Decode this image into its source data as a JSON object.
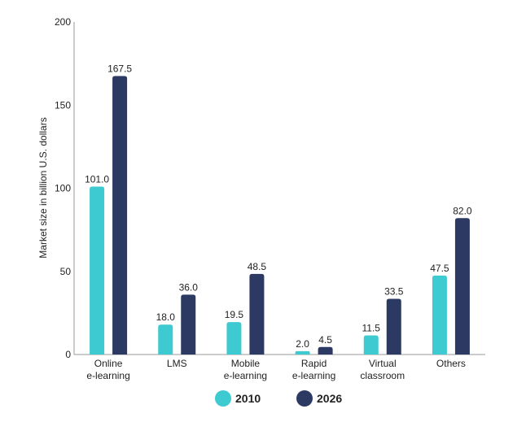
{
  "chart_data": {
    "type": "bar",
    "title": "",
    "xlabel": "",
    "ylabel": "Market size in billion U.S. dollars",
    "ylim": [
      0,
      200
    ],
    "yticks": [
      "0",
      "50",
      "100",
      "150",
      "200"
    ],
    "grid": false,
    "legend_position": "bottom",
    "categories": [
      [
        "Online",
        "e-learning"
      ],
      [
        "LMS"
      ],
      [
        "Mobile",
        "e-learning"
      ],
      [
        "Rapid",
        "e-learning"
      ],
      [
        "Virtual",
        "classroom"
      ],
      [
        "Others"
      ]
    ],
    "series": [
      {
        "name": "2010",
        "color": "#3ecad1",
        "values": [
          101.0,
          18.0,
          19.5,
          2.0,
          11.5,
          47.5
        ],
        "labels": [
          "101.0",
          "18.0",
          "19.5",
          "2.0",
          "11.5",
          "47.5"
        ]
      },
      {
        "name": "2026",
        "color": "#2c3a63",
        "values": [
          167.5,
          36.0,
          48.5,
          4.5,
          33.5,
          82.0
        ],
        "labels": [
          "167.5",
          "36.0",
          "48.5",
          "4.5",
          "33.5",
          "82.0"
        ]
      }
    ]
  }
}
